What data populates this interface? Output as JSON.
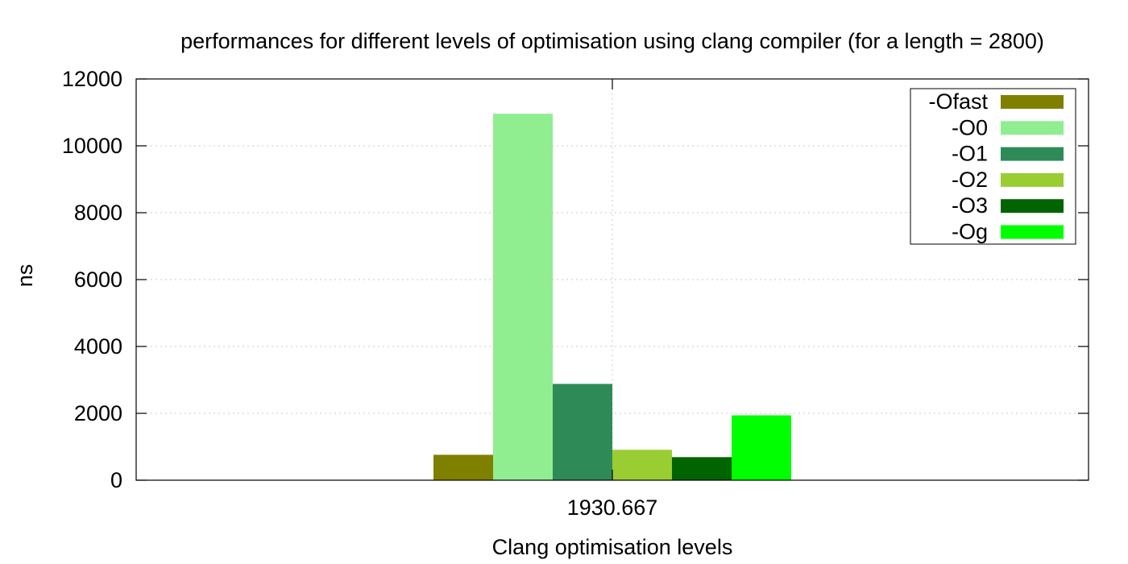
{
  "chart_data": {
    "type": "bar",
    "title": "performances for different levels of optimisation using clang compiler (for a length = 2800)",
    "xlabel": "Clang optimisation levels",
    "ylabel": "ns",
    "ylim": [
      0,
      12000
    ],
    "yticks": [
      0,
      2000,
      4000,
      6000,
      8000,
      10000,
      12000
    ],
    "categories": [
      "1930.667"
    ],
    "grid": true,
    "legend_position": "top-right",
    "series": [
      {
        "name": "-Ofast",
        "color": "#808000",
        "values": [
          760
        ]
      },
      {
        "name": "-O0",
        "color": "#90ee90",
        "values": [
          10960
        ]
      },
      {
        "name": "-O1",
        "color": "#2e8b57",
        "values": [
          2880
        ]
      },
      {
        "name": "-O2",
        "color": "#9acd32",
        "values": [
          910
        ]
      },
      {
        "name": "-O3",
        "color": "#006400",
        "values": [
          690
        ]
      },
      {
        "name": "-Og",
        "color": "#00ff00",
        "values": [
          1940
        ]
      }
    ]
  }
}
